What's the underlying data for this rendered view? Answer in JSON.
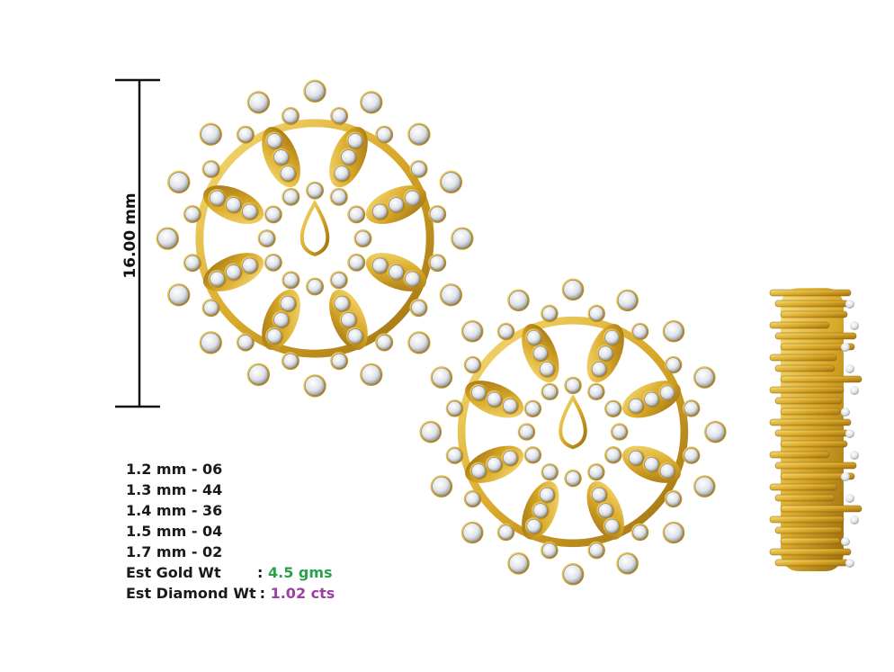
{
  "dimension": {
    "label": "16.00 mm"
  },
  "specs": [
    "1.2 mm - 06",
    "1.3 mm - 44",
    "1.4 mm - 36",
    "1.5 mm - 04",
    "1.7 mm - 02"
  ],
  "gold_weight": {
    "label": "Est Gold Wt",
    "colon": ":",
    "value": "4.5 gms"
  },
  "diamond_weight": {
    "label": "Est Diamond Wt",
    "colon": ":",
    "value": "1.02 cts"
  }
}
